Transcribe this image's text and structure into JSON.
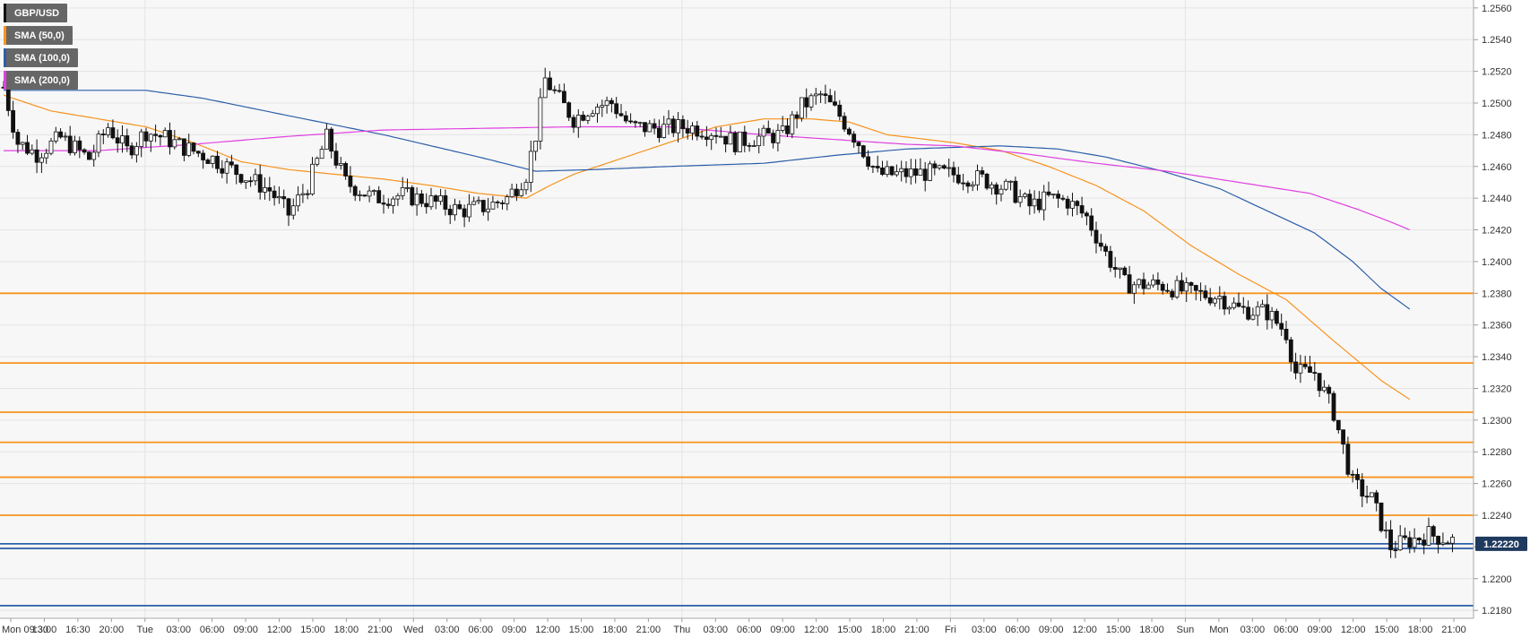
{
  "chart_data": {
    "type": "candlestick",
    "symbol": "GBP/USD",
    "indicators": [
      {
        "name": "SMA (50,0)",
        "color": "#f7931e"
      },
      {
        "name": "SMA (100,0)",
        "color": "#2b5ea8"
      },
      {
        "name": "SMA (200,0)",
        "color": "#e040e0"
      }
    ],
    "ylim": [
      1.2175,
      1.2565
    ],
    "y_ticks": [
      "1.2180",
      "1.2200",
      "1.2220",
      "1.2240",
      "1.2260",
      "1.2280",
      "1.2300",
      "1.2320",
      "1.2340",
      "1.2360",
      "1.2380",
      "1.2400",
      "1.2420",
      "1.2440",
      "1.2460",
      "1.2480",
      "1.2500",
      "1.2520",
      "1.2540",
      "1.2560"
    ],
    "x_ticks": [
      "Mon 09:30",
      "13:00",
      "16:30",
      "20:00",
      "Tue",
      "03:00",
      "06:00",
      "09:00",
      "12:00",
      "15:00",
      "18:00",
      "21:00",
      "Wed",
      "03:00",
      "06:00",
      "09:00",
      "12:00",
      "15:00",
      "18:00",
      "21:00",
      "Thu",
      "03:00",
      "06:00",
      "09:00",
      "12:00",
      "15:00",
      "18:00",
      "21:00",
      "Fri",
      "03:00",
      "06:00",
      "09:00",
      "12:00",
      "15:00",
      "18:00",
      "Sun",
      "Mon",
      "03:00",
      "06:00",
      "09:00",
      "12:00",
      "15:00",
      "18:00",
      "21:00"
    ],
    "x_tick_vlines": [
      4,
      12,
      20,
      28,
      35
    ],
    "horizontal_levels": [
      {
        "value": 1.238,
        "color": "#f7931e"
      },
      {
        "value": 1.2336,
        "color": "#f7931e"
      },
      {
        "value": 1.2305,
        "color": "#f7931e"
      },
      {
        "value": 1.2286,
        "color": "#f7931e"
      },
      {
        "value": 1.2264,
        "color": "#f7931e"
      },
      {
        "value": 1.224,
        "color": "#f7931e"
      },
      {
        "value": 1.2222,
        "color": "#2b5ea8"
      },
      {
        "value": 1.2219,
        "color": "#2b5ea8"
      },
      {
        "value": 1.2183,
        "color": "#2b5ea8"
      }
    ],
    "last_price": "1.22220",
    "last_price_value": 1.2222,
    "anchors": [
      [
        0,
        1.251
      ],
      [
        3,
        1.2475
      ],
      [
        7,
        1.2468
      ],
      [
        12,
        1.2478
      ],
      [
        18,
        1.2465
      ],
      [
        22,
        1.2485
      ],
      [
        26,
        1.247
      ],
      [
        30,
        1.2482
      ],
      [
        34,
        1.2478
      ],
      [
        38,
        1.2472
      ],
      [
        44,
        1.2465
      ],
      [
        50,
        1.2455
      ],
      [
        56,
        1.2445
      ],
      [
        60,
        1.243
      ],
      [
        64,
        1.2448
      ],
      [
        68,
        1.2478
      ],
      [
        72,
        1.245
      ],
      [
        78,
        1.244
      ],
      [
        84,
        1.2442
      ],
      [
        90,
        1.2438
      ],
      [
        96,
        1.2432
      ],
      [
        102,
        1.2435
      ],
      [
        106,
        1.244
      ],
      [
        110,
        1.2455
      ],
      [
        112,
        1.248
      ],
      [
        114,
        1.2515
      ],
      [
        117,
        1.2502
      ],
      [
        120,
        1.249
      ],
      [
        124,
        1.2498
      ],
      [
        128,
        1.25
      ],
      [
        132,
        1.2485
      ],
      [
        138,
        1.2484
      ],
      [
        144,
        1.2485
      ],
      [
        150,
        1.2482
      ],
      [
        154,
        1.2475
      ],
      [
        158,
        1.2478
      ],
      [
        164,
        1.248
      ],
      [
        168,
        1.2498
      ],
      [
        172,
        1.2505
      ],
      [
        176,
        1.2492
      ],
      [
        180,
        1.2475
      ],
      [
        184,
        1.2455
      ],
      [
        188,
        1.2455
      ],
      [
        194,
        1.2456
      ],
      [
        200,
        1.2455
      ],
      [
        206,
        1.2452
      ],
      [
        212,
        1.2445
      ],
      [
        216,
        1.2435
      ],
      [
        220,
        1.244
      ],
      [
        224,
        1.2438
      ],
      [
        228,
        1.2428
      ],
      [
        232,
        1.2405
      ],
      [
        236,
        1.2386
      ],
      [
        244,
        1.2385
      ],
      [
        250,
        1.238
      ],
      [
        256,
        1.2378
      ],
      [
        260,
        1.237
      ],
      [
        266,
        1.2368
      ],
      [
        270,
        1.2355
      ],
      [
        272,
        1.233
      ],
      [
        276,
        1.233
      ],
      [
        280,
        1.2305
      ],
      [
        284,
        1.226
      ],
      [
        288,
        1.225
      ],
      [
        292,
        1.222
      ],
      [
        296,
        1.2224
      ],
      [
        300,
        1.2228
      ],
      [
        305,
        1.2224
      ]
    ],
    "sma50": [
      [
        0,
        1.2505
      ],
      [
        10,
        1.2495
      ],
      [
        20,
        1.249
      ],
      [
        30,
        1.2485
      ],
      [
        40,
        1.2475
      ],
      [
        50,
        1.2463
      ],
      [
        60,
        1.2458
      ],
      [
        70,
        1.2455
      ],
      [
        80,
        1.2452
      ],
      [
        90,
        1.2448
      ],
      [
        100,
        1.2443
      ],
      [
        110,
        1.244
      ],
      [
        115,
        1.2448
      ],
      [
        120,
        1.2455
      ],
      [
        130,
        1.2465
      ],
      [
        140,
        1.2475
      ],
      [
        150,
        1.2485
      ],
      [
        160,
        1.249
      ],
      [
        170,
        1.249
      ],
      [
        178,
        1.2488
      ],
      [
        186,
        1.248
      ],
      [
        200,
        1.2475
      ],
      [
        210,
        1.247
      ],
      [
        220,
        1.246
      ],
      [
        230,
        1.2448
      ],
      [
        240,
        1.2432
      ],
      [
        250,
        1.241
      ],
      [
        260,
        1.2392
      ],
      [
        270,
        1.2376
      ],
      [
        280,
        1.235
      ],
      [
        290,
        1.2325
      ],
      [
        296,
        1.2313
      ]
    ],
    "sma100": [
      [
        0,
        1.2508
      ],
      [
        30,
        1.2508
      ],
      [
        42,
        1.2503
      ],
      [
        60,
        1.2492
      ],
      [
        80,
        1.248
      ],
      [
        100,
        1.2466
      ],
      [
        112,
        1.2457
      ],
      [
        124,
        1.2458
      ],
      [
        140,
        1.246
      ],
      [
        160,
        1.2462
      ],
      [
        175,
        1.2467
      ],
      [
        190,
        1.2471
      ],
      [
        210,
        1.2473
      ],
      [
        222,
        1.2471
      ],
      [
        232,
        1.2466
      ],
      [
        244,
        1.2457
      ],
      [
        256,
        1.2446
      ],
      [
        266,
        1.2432
      ],
      [
        276,
        1.2418
      ],
      [
        284,
        1.24
      ],
      [
        290,
        1.2383
      ],
      [
        296,
        1.237
      ]
    ],
    "sma200": [
      [
        0,
        1.247
      ],
      [
        20,
        1.247
      ],
      [
        40,
        1.2474
      ],
      [
        60,
        1.2479
      ],
      [
        80,
        1.2483
      ],
      [
        100,
        1.2484
      ],
      [
        120,
        1.2485
      ],
      [
        140,
        1.2485
      ],
      [
        160,
        1.248
      ],
      [
        175,
        1.2477
      ],
      [
        190,
        1.2474
      ],
      [
        200,
        1.2473
      ],
      [
        215,
        1.2468
      ],
      [
        230,
        1.2462
      ],
      [
        245,
        1.2457
      ],
      [
        260,
        1.245
      ],
      [
        275,
        1.2443
      ],
      [
        285,
        1.2433
      ],
      [
        292,
        1.2425
      ],
      [
        296,
        1.242
      ]
    ],
    "grid": true,
    "legend_position": "top-left",
    "axis_colors": {
      "grid": "#e4e4e4",
      "background": "#f7f7f7",
      "text": "#333333"
    }
  }
}
